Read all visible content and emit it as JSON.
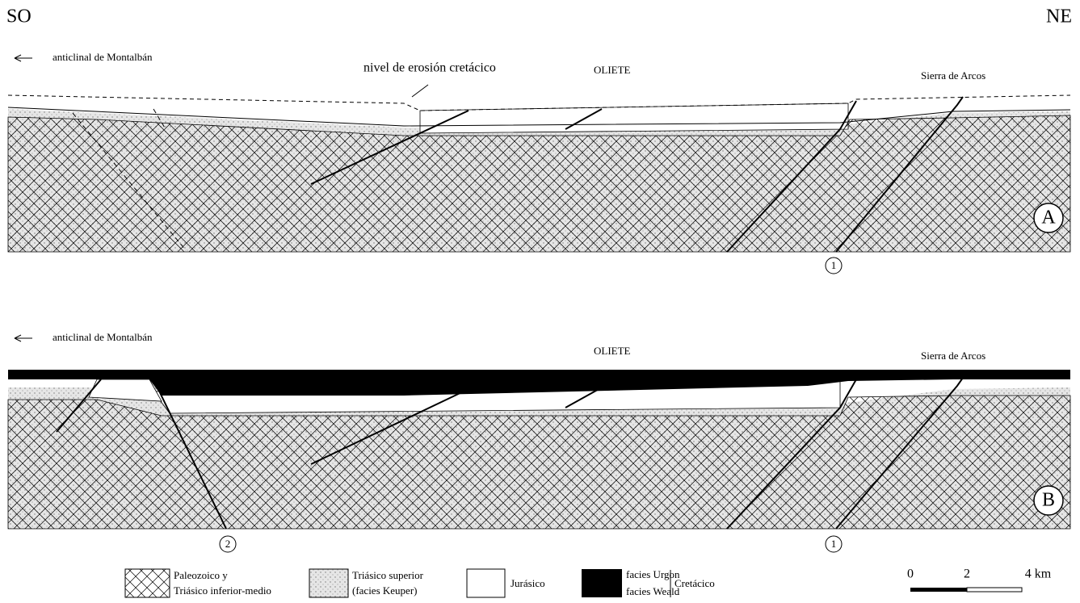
{
  "header": {
    "left": "SO",
    "right": "NE"
  },
  "sections": [
    {
      "label": "A",
      "arrow_label": "anticlinal de Montalbán",
      "annotation": "nivel de erosión cretácico",
      "town": "OLIETE",
      "range": "Sierra de Arcos",
      "faults": [
        "1"
      ]
    },
    {
      "label": "B",
      "arrow_label": "anticlinal de Montalbán",
      "town": "OLIETE",
      "range": "Sierra de Arcos",
      "faults": [
        "2",
        "1"
      ]
    }
  ],
  "legend": {
    "paleozoic": [
      "Paleozoico y",
      "Triásico inferior-medio"
    ],
    "keuper": [
      "Triásico superior",
      "(facies Keuper)"
    ],
    "jurassic": "Jurásico",
    "cretaceous": {
      "units": [
        "facies Urgon",
        "facies Weald"
      ],
      "group": "Cretácico"
    }
  },
  "scale": [
    "0",
    "2",
    "4 km"
  ]
}
